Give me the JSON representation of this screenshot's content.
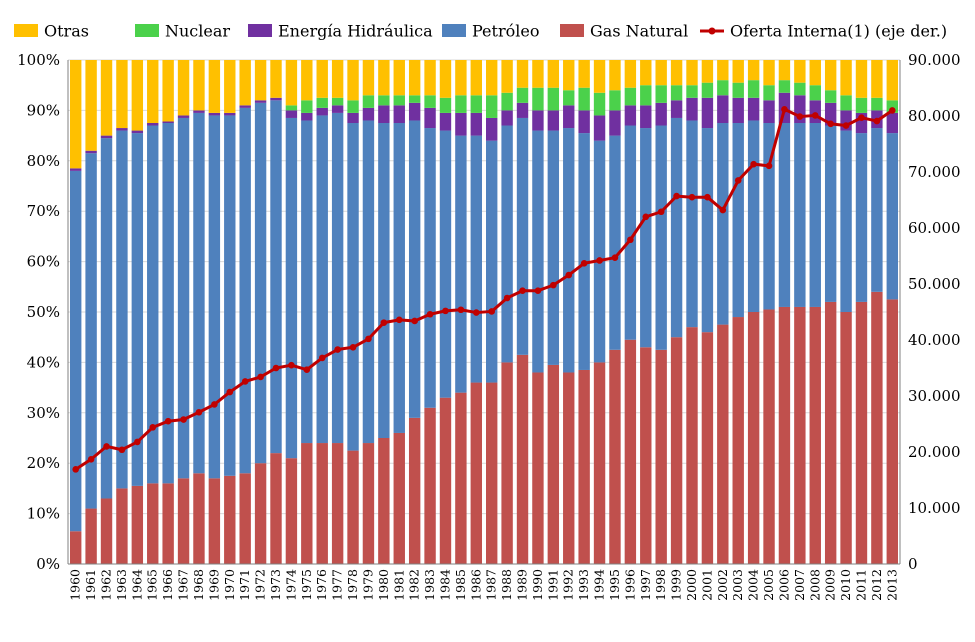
{
  "chart_data": {
    "type": "bar",
    "subtype": "stacked-100-percent-with-line",
    "title": "",
    "xlabel": "",
    "ylabel": "",
    "ylim": [
      0,
      100
    ],
    "y2lim": [
      0,
      90000
    ],
    "yticks": [
      "0%",
      "10%",
      "20%",
      "30%",
      "40%",
      "50%",
      "60%",
      "70%",
      "80%",
      "90%",
      "100%"
    ],
    "y2ticks": [
      "0",
      "10.000",
      "20.000",
      "30.000",
      "40.000",
      "50.000",
      "60.000",
      "70.000",
      "80.000",
      "90.000"
    ],
    "grid": true,
    "legend_position": "top",
    "legend_order": [
      "Otras",
      "Nuclear",
      "Energía Hidráulica",
      "Petróleo",
      "Gas Natural",
      "Oferta Interna(1) (eje der.)"
    ],
    "categories": [
      "1960",
      "1961",
      "1962",
      "1963",
      "1964",
      "1965",
      "1966",
      "1967",
      "1968",
      "1969",
      "1970",
      "1971",
      "1972",
      "1973",
      "1974",
      "1975",
      "1976",
      "1977",
      "1978",
      "1979",
      "1980",
      "1981",
      "1982",
      "1983",
      "1984",
      "1985",
      "1986",
      "1987",
      "1988",
      "1989",
      "1990",
      "1991",
      "1992",
      "1993",
      "1994",
      "1995",
      "1996",
      "1997",
      "1998",
      "1999",
      "2000",
      "2001",
      "2002",
      "2003",
      "2004",
      "2005",
      "2006",
      "2007",
      "2008",
      "2009",
      "2010",
      "2011",
      "2012",
      "2013"
    ],
    "series": [
      {
        "name": "Gas Natural",
        "color": "#c0504d",
        "values": [
          6.5,
          11,
          13,
          15,
          15.5,
          16,
          16,
          17,
          18,
          17,
          17.5,
          18,
          20,
          22,
          21,
          24,
          24,
          24,
          22.5,
          24,
          25,
          26,
          29,
          31,
          33,
          34,
          36,
          36,
          40,
          41.5,
          38,
          39.5,
          38,
          38.5,
          40,
          42.5,
          44.5,
          43,
          42.5,
          45,
          47,
          46,
          47.5,
          49,
          50,
          50.5,
          51,
          51,
          51,
          52,
          50,
          52,
          54,
          52.5
        ]
      },
      {
        "name": "Petróleo",
        "color": "#4f81bd",
        "values": [
          71.5,
          70.5,
          71.5,
          71,
          70,
          71,
          71.5,
          71.5,
          71.5,
          72,
          71.5,
          72.5,
          71.5,
          70,
          67.5,
          64,
          65,
          65.5,
          65,
          64,
          62.5,
          61.5,
          59,
          55.5,
          53,
          51,
          49,
          48,
          47,
          47,
          48,
          46.5,
          48.5,
          47,
          44,
          42.5,
          42.5,
          43.5,
          44.5,
          43.5,
          41,
          40.5,
          40,
          38.5,
          38,
          37,
          36.5,
          36.5,
          36.5,
          35,
          36,
          33.5,
          32.5,
          33
        ]
      },
      {
        "name": "Energía Hidráulica",
        "color": "#7030a0",
        "values": [
          0.5,
          0.5,
          0.5,
          0.5,
          0.5,
          0.5,
          0.3,
          0.5,
          0.5,
          0.5,
          0.5,
          0.5,
          0.5,
          0.5,
          1.5,
          1.5,
          1.5,
          1.5,
          2,
          2.5,
          3.5,
          3.5,
          3.5,
          4,
          3.5,
          4.5,
          4.5,
          4.5,
          3,
          3,
          4,
          4,
          4.5,
          4.5,
          5,
          5,
          4,
          4.5,
          4.5,
          3.5,
          4.5,
          6,
          5.5,
          5,
          4.5,
          4.5,
          6,
          5.5,
          4.5,
          4.5,
          4,
          4,
          3.5,
          4
        ]
      },
      {
        "name": "Nuclear",
        "color": "#4bd14b",
        "values": [
          0,
          0,
          0,
          0,
          0,
          0,
          0,
          0,
          0,
          0,
          0,
          0,
          0,
          0,
          1,
          2.5,
          2,
          1.5,
          2.5,
          2.5,
          2,
          2,
          1.5,
          2.5,
          3,
          3.5,
          3.5,
          4.5,
          3.5,
          3,
          4.5,
          4.5,
          3,
          4.5,
          4.5,
          4,
          3.5,
          4,
          3.5,
          3,
          2.5,
          3,
          3,
          3,
          3.5,
          3,
          2.5,
          2.5,
          3,
          2.5,
          3,
          3,
          2.5,
          2.5
        ]
      },
      {
        "name": "Otras",
        "color": "#ffc000",
        "values": [
          21.5,
          18,
          15,
          13.5,
          14,
          12.5,
          12.2,
          11,
          10,
          10.5,
          10.5,
          9,
          8,
          7.5,
          9,
          8,
          7.5,
          7.5,
          8,
          7,
          7,
          7,
          7,
          7,
          7.5,
          7,
          7,
          7,
          6.5,
          5.5,
          5.5,
          5.5,
          6,
          5.5,
          6.5,
          6,
          5.5,
          5,
          5,
          5,
          5,
          4.5,
          4,
          4.5,
          4,
          5,
          4,
          4.5,
          5,
          6,
          7,
          7.5,
          7.5,
          8
        ]
      }
    ],
    "line_series": {
      "name": "Oferta Interna(1) (eje der.)",
      "color": "#c00000",
      "axis": "right",
      "values": [
        16900,
        18700,
        21000,
        20400,
        21800,
        24400,
        25500,
        25800,
        27100,
        28500,
        30700,
        32600,
        33400,
        35000,
        35500,
        34700,
        36800,
        38300,
        38700,
        40200,
        43100,
        43600,
        43400,
        44600,
        45200,
        45400,
        44900,
        45100,
        47500,
        48800,
        48800,
        49800,
        51600,
        53700,
        54200,
        54700,
        57900,
        62000,
        62900,
        65700,
        65500,
        65500,
        63200,
        68500,
        71400,
        71100,
        81200,
        79900,
        80100,
        78600,
        78300,
        79700,
        79100,
        81000
      ]
    }
  }
}
